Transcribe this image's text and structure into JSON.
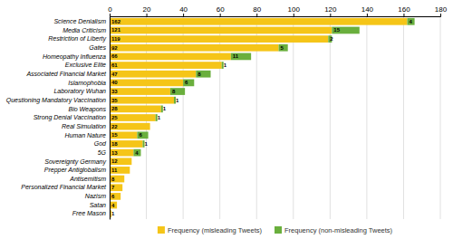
{
  "chart_data": {
    "type": "bar",
    "orientation": "horizontal",
    "stacked": true,
    "categories": [
      "Science Denialism",
      "Media Criticism",
      "Restriction of Liberty",
      "Gates",
      "Homeopathy Influenza",
      "Exclusive Elite",
      "Associated Financial Market",
      "Islamophobia",
      "Laboratory Wuhan",
      "Questioning Mandatory Vaccination",
      "Bio Weapons",
      "Strong Denial Vaccination",
      "Real Simulation",
      "Human Nature",
      "God",
      "5G",
      "Sovereignty Germany",
      "Prepper Antiglobalism",
      "Antisemitism",
      "Personalized Financial Market",
      "Nazism",
      "Satan",
      "Free Mason"
    ],
    "series": [
      {
        "name": "Frequency (misleading Tweets)",
        "color": "#F5C518",
        "values": [
          162,
          121,
          119,
          92,
          66,
          61,
          47,
          40,
          33,
          35,
          28,
          25,
          22,
          15,
          18,
          13,
          12,
          11,
          8,
          7,
          6,
          4,
          1
        ]
      },
      {
        "name": "Frequency (non-misleading Tweets)",
        "color": "#6AAF3D",
        "values": [
          4,
          15,
          2,
          5,
          11,
          1,
          8,
          6,
          8,
          1,
          1,
          1,
          0,
          6,
          1,
          4,
          0,
          0,
          0,
          0,
          0,
          0,
          0
        ]
      }
    ],
    "xlim": [
      0,
      180
    ],
    "xticks": [
      0,
      20,
      40,
      60,
      80,
      100,
      120,
      140,
      160,
      180
    ],
    "grid": true,
    "legend": "bottom",
    "data_labels": true
  }
}
